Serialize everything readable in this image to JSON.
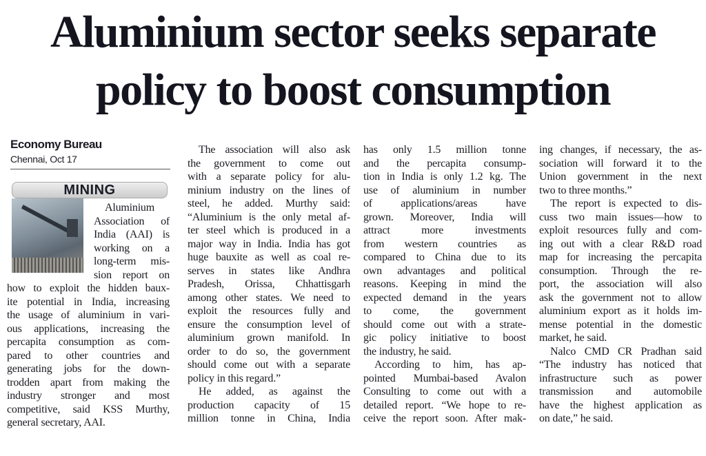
{
  "headline": {
    "line1": "Aluminium sector seeks separate",
    "line2": "policy to boost consumption"
  },
  "byline": {
    "author": "Economy Bureau",
    "dateline": "Chennai, Oct 17"
  },
  "section_label": "MINING",
  "columns": [
    [
      [
        "Aluminium",
        "Association of",
        "India (AAI) is",
        "working on a",
        "long-term mis-",
        "sion report on",
        "how to exploit the hidden baux-",
        "ite potential in India, increasing",
        "the usage of aluminium in vari-",
        "ous applications, increasing the",
        "percapita consumption as com-",
        "pared to other countries and",
        "generating jobs for the down-",
        "trodden apart from making the",
        "industry stronger and most",
        "competitive, said KSS Murthy,",
        "general secretary, AAI."
      ]
    ],
    [
      [
        "The association will also ask",
        "the government to come out",
        "with a separate policy for alu-",
        "minium industry on the lines of",
        "steel, he added. Murthy said:",
        "“Aluminium is the only metal af-",
        "ter steel which is produced in a",
        "major way in India. India has got",
        "huge bauxite as well as coal re-",
        "serves in states like Andhra",
        "Pradesh, Orissa, Chhattisgarh",
        "among other states. We need to",
        "exploit the resources fully and",
        "ensure the consumption level of",
        "aluminium grown manifold. In",
        "order to do so, the government",
        "should come out with a separate",
        "policy in this regard.”"
      ],
      [
        "He added, as against the",
        "production capacity of 15",
        "million tonne in China, India"
      ]
    ],
    [
      [
        "has only 1.5 million tonne",
        "and the percapita consump-",
        "tion in India is only 1.2 kg. The",
        "use of aluminium in number",
        "of applications/areas have",
        "grown. Moreover, India will",
        "attract more investments",
        "from western countries as",
        "compared to China due to its",
        "own advantages and political",
        "reasons. Keeping in mind the",
        "expected demand in the years",
        "to come, the government",
        "should come out with a strate-",
        "gic policy initiative to boost",
        "the industry, he said."
      ],
      [
        "According to him, has ap-",
        "pointed Mumbai-based Avalon",
        "Consulting to come out with a",
        "detailed report. “We hope to re-",
        "ceive the report soon. After mak-"
      ]
    ],
    [
      [
        "ing changes, if necessary, the as-",
        "sociation will forward it to the",
        "Union government in the next",
        "two to three months.”"
      ],
      [
        "The report is expected to dis-",
        "cuss two main issues—how to",
        "exploit resources fully and com-",
        "ing out with a clear R&D road",
        "map for increasing the percapita",
        "consumption. Through the re-",
        "port, the association will also",
        "ask the government not to allow",
        "aluminium export as it holds im-",
        "mense potential in the domestic",
        "market, he said."
      ],
      [
        "Nalco CMD CR Pradhan said",
        "“The industry has noticed that",
        "infrastructure such as power",
        "transmission and automobile",
        "have the highest application as",
        "on date,” he said."
      ]
    ]
  ]
}
